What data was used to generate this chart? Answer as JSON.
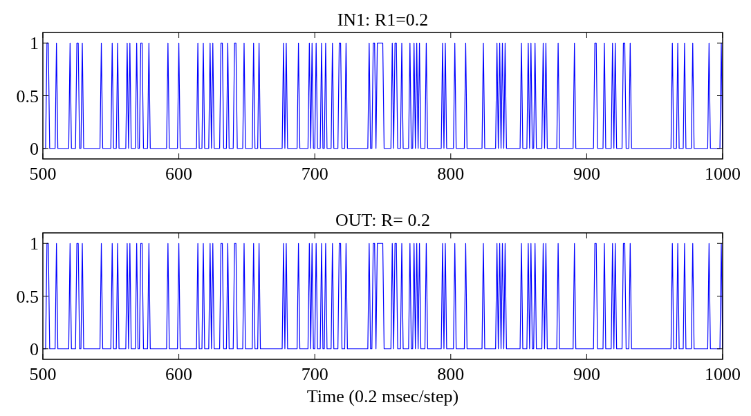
{
  "chart_data": [
    {
      "type": "line",
      "title": "IN1: R1=0.2",
      "xlim": [
        500,
        1000
      ],
      "xticks": [
        500,
        600,
        700,
        800,
        900,
        1000
      ],
      "ylim": [
        -0.1,
        1.1
      ],
      "yticks": [
        0,
        0.5,
        1
      ],
      "grid": false,
      "marker": "none",
      "line_style": "solid",
      "series": [
        {
          "color": "#0000ff",
          "x": [
            500,
            502,
            503,
            504,
            505,
            509,
            510,
            511,
            519,
            520,
            521,
            524,
            525,
            526,
            527,
            528,
            529,
            530,
            542,
            543,
            544,
            550,
            551,
            552,
            554,
            555,
            556,
            561,
            562,
            563,
            564,
            565,
            568,
            569,
            570,
            571,
            572,
            573,
            574,
            577,
            578,
            579,
            591,
            592,
            593,
            599,
            600,
            601,
            613,
            614,
            615,
            617,
            618,
            619,
            622,
            623,
            624,
            625,
            626,
            630,
            631,
            632,
            633,
            635,
            636,
            637,
            640,
            641,
            642,
            643,
            647,
            648,
            649,
            654,
            655,
            656,
            658,
            659,
            660,
            676,
            677,
            678,
            679,
            680,
            687,
            688,
            689,
            695,
            696,
            697,
            698,
            699,
            700,
            701,
            702,
            704,
            705,
            706,
            707,
            708,
            709,
            712,
            713,
            714,
            717,
            718,
            719,
            720,
            722,
            723,
            724,
            739,
            740,
            741,
            742,
            743,
            744,
            745,
            746,
            750,
            751,
            756,
            757,
            758,
            759,
            760,
            761,
            763,
            764,
            765,
            769,
            770,
            771,
            772,
            773,
            774,
            775,
            776,
            777,
            778,
            781,
            782,
            783,
            793,
            794,
            795,
            796,
            797,
            802,
            803,
            804,
            810,
            811,
            812,
            823,
            824,
            825,
            833,
            834,
            835,
            836,
            837,
            838,
            839,
            840,
            841,
            851,
            852,
            853,
            856,
            857,
            858,
            859,
            860,
            861,
            862,
            863,
            867,
            868,
            869,
            870,
            871,
            878,
            879,
            880,
            890,
            891,
            892,
            905,
            906,
            907,
            908,
            912,
            913,
            914,
            918,
            919,
            920,
            921,
            922,
            926,
            927,
            928,
            929,
            931,
            932,
            933,
            962,
            963,
            964,
            966,
            967,
            968,
            971,
            972,
            973,
            977,
            978,
            979,
            989,
            990,
            991,
            998,
            999,
            1000
          ],
          "values": [
            0,
            0,
            1,
            1,
            0,
            0,
            1,
            0,
            0,
            1,
            0,
            0,
            1,
            1,
            0,
            0,
            1,
            0,
            0,
            1,
            0,
            0,
            1,
            0,
            0,
            1,
            0,
            0,
            1,
            0,
            1,
            0,
            0,
            1,
            0,
            0,
            1,
            1,
            0,
            0,
            1,
            0,
            0,
            1,
            0,
            0,
            1,
            0,
            0,
            1,
            0,
            0,
            1,
            0,
            0,
            1,
            0,
            1,
            0,
            0,
            1,
            1,
            0,
            0,
            1,
            0,
            0,
            1,
            1,
            0,
            0,
            1,
            0,
            0,
            1,
            0,
            0,
            1,
            0,
            0,
            1,
            0,
            1,
            0,
            0,
            1,
            0,
            0,
            1,
            0,
            1,
            0,
            0,
            1,
            0,
            0,
            1,
            0,
            0,
            1,
            0,
            0,
            1,
            0,
            0,
            1,
            1,
            0,
            0,
            1,
            0,
            0,
            1,
            0,
            0,
            1,
            1,
            0,
            1,
            1,
            0,
            0,
            1,
            0,
            1,
            1,
            0,
            0,
            1,
            0,
            0,
            1,
            0,
            0,
            1,
            0,
            1,
            0,
            1,
            0,
            0,
            1,
            0,
            0,
            1,
            0,
            1,
            0,
            0,
            1,
            0,
            0,
            1,
            0,
            0,
            1,
            0,
            0,
            1,
            0,
            1,
            0,
            1,
            0,
            1,
            0,
            0,
            1,
            0,
            0,
            1,
            0,
            1,
            0,
            0,
            1,
            0,
            0,
            1,
            0,
            1,
            0,
            0,
            1,
            0,
            0,
            1,
            0,
            0,
            1,
            1,
            0,
            0,
            1,
            0,
            0,
            1,
            0,
            1,
            0,
            0,
            1,
            1,
            0,
            0,
            1,
            0,
            0,
            1,
            0,
            0,
            1,
            0,
            0,
            1,
            0,
            0,
            1,
            0,
            0,
            1,
            0,
            0,
            1,
            0
          ]
        }
      ]
    },
    {
      "type": "line",
      "title": "OUT: R= 0.2",
      "xlabel": "Time (0.2 msec/step)",
      "xlim": [
        500,
        1000
      ],
      "xticks": [
        500,
        600,
        700,
        800,
        900,
        1000
      ],
      "ylim": [
        -0.1,
        1.1
      ],
      "yticks": [
        0,
        0.5,
        1
      ],
      "grid": false,
      "marker": "none",
      "line_style": "solid",
      "series": [
        {
          "color": "#0000ff",
          "x": [
            500,
            502,
            503,
            504,
            505,
            509,
            510,
            511,
            519,
            520,
            521,
            524,
            525,
            526,
            527,
            528,
            529,
            530,
            542,
            543,
            544,
            550,
            551,
            552,
            554,
            555,
            556,
            561,
            562,
            563,
            564,
            565,
            568,
            569,
            570,
            571,
            572,
            573,
            574,
            577,
            578,
            579,
            591,
            592,
            593,
            599,
            600,
            601,
            613,
            614,
            615,
            617,
            618,
            619,
            622,
            623,
            624,
            625,
            626,
            630,
            631,
            632,
            633,
            635,
            636,
            637,
            640,
            641,
            642,
            643,
            647,
            648,
            649,
            654,
            655,
            656,
            658,
            659,
            660,
            676,
            677,
            678,
            679,
            680,
            687,
            688,
            689,
            695,
            696,
            697,
            698,
            699,
            700,
            701,
            702,
            704,
            705,
            706,
            707,
            708,
            709,
            712,
            713,
            714,
            717,
            718,
            719,
            720,
            722,
            723,
            724,
            739,
            740,
            741,
            742,
            743,
            744,
            745,
            746,
            750,
            751,
            756,
            757,
            758,
            759,
            760,
            761,
            763,
            764,
            765,
            769,
            770,
            771,
            772,
            773,
            774,
            775,
            776,
            777,
            778,
            781,
            782,
            783,
            793,
            794,
            795,
            796,
            797,
            802,
            803,
            804,
            810,
            811,
            812,
            823,
            824,
            825,
            833,
            834,
            835,
            836,
            837,
            838,
            839,
            840,
            841,
            851,
            852,
            853,
            856,
            857,
            858,
            859,
            860,
            861,
            862,
            863,
            867,
            868,
            869,
            870,
            871,
            878,
            879,
            880,
            890,
            891,
            892,
            905,
            906,
            907,
            908,
            912,
            913,
            914,
            918,
            919,
            920,
            921,
            922,
            926,
            927,
            928,
            929,
            931,
            932,
            933,
            962,
            963,
            964,
            966,
            967,
            968,
            971,
            972,
            973,
            977,
            978,
            979,
            989,
            990,
            991,
            998,
            999,
            1000
          ],
          "values": [
            0,
            0,
            1,
            1,
            0,
            0,
            1,
            0,
            0,
            1,
            0,
            0,
            1,
            1,
            0,
            0,
            1,
            0,
            0,
            1,
            0,
            0,
            1,
            0,
            0,
            1,
            0,
            0,
            1,
            0,
            1,
            0,
            0,
            1,
            0,
            0,
            1,
            1,
            0,
            0,
            1,
            0,
            0,
            1,
            0,
            0,
            1,
            0,
            0,
            1,
            0,
            0,
            1,
            0,
            0,
            1,
            0,
            1,
            0,
            0,
            1,
            1,
            0,
            0,
            1,
            0,
            0,
            1,
            1,
            0,
            0,
            1,
            0,
            0,
            1,
            0,
            0,
            1,
            0,
            0,
            1,
            0,
            1,
            0,
            0,
            1,
            0,
            0,
            1,
            0,
            1,
            0,
            0,
            1,
            0,
            0,
            1,
            0,
            0,
            1,
            0,
            0,
            1,
            0,
            0,
            1,
            1,
            0,
            0,
            1,
            0,
            0,
            1,
            0,
            0,
            1,
            1,
            0,
            1,
            1,
            0,
            0,
            1,
            0,
            1,
            1,
            0,
            0,
            1,
            0,
            0,
            1,
            0,
            0,
            1,
            0,
            1,
            0,
            1,
            0,
            0,
            1,
            0,
            0,
            1,
            0,
            1,
            0,
            0,
            1,
            0,
            0,
            1,
            0,
            0,
            1,
            0,
            0,
            1,
            0,
            1,
            0,
            1,
            0,
            1,
            0,
            0,
            1,
            0,
            0,
            1,
            0,
            1,
            0,
            0,
            1,
            0,
            0,
            1,
            0,
            1,
            0,
            0,
            1,
            0,
            0,
            1,
            0,
            0,
            1,
            1,
            0,
            0,
            1,
            0,
            0,
            1,
            0,
            1,
            0,
            0,
            1,
            1,
            0,
            0,
            1,
            0,
            0,
            1,
            0,
            0,
            1,
            0,
            0,
            1,
            0,
            0,
            1,
            0,
            0,
            1,
            0,
            0,
            1,
            0
          ]
        }
      ]
    }
  ]
}
